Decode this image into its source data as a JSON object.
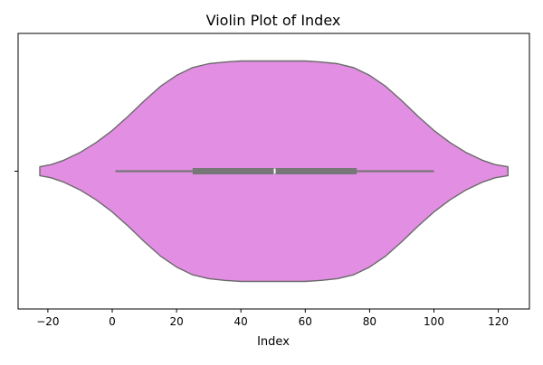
{
  "chart_data": {
    "type": "violin",
    "title": "Violin Plot of Index",
    "xlabel": "Index",
    "ylabel": "",
    "orientation": "horizontal",
    "xlim": [
      -28,
      127
    ],
    "x_ticks": [
      -20,
      0,
      20,
      40,
      60,
      80,
      100,
      120
    ],
    "x_tick_labels": [
      "−20",
      "0",
      "20",
      "40",
      "60",
      "80",
      "100",
      "120"
    ],
    "y_tick_labels": [
      ""
    ],
    "violin": {
      "fill_color": "#e28ee3",
      "edge_color": "#6a6a6a",
      "density_profile": [
        [
          -22.5,
          0.04
        ],
        [
          -19,
          0.06
        ],
        [
          -15,
          0.1
        ],
        [
          -10,
          0.17
        ],
        [
          -5,
          0.26
        ],
        [
          0,
          0.37
        ],
        [
          5,
          0.5
        ],
        [
          10,
          0.64
        ],
        [
          15,
          0.77
        ],
        [
          20,
          0.87
        ],
        [
          25,
          0.94
        ],
        [
          30,
          0.975
        ],
        [
          35,
          0.99
        ],
        [
          40,
          1.0
        ],
        [
          50,
          1.0
        ],
        [
          60,
          1.0
        ],
        [
          65,
          0.99
        ],
        [
          70,
          0.975
        ],
        [
          75,
          0.94
        ],
        [
          80,
          0.87
        ],
        [
          85,
          0.77
        ],
        [
          90,
          0.64
        ],
        [
          95,
          0.5
        ],
        [
          100,
          0.37
        ],
        [
          105,
          0.26
        ],
        [
          110,
          0.17
        ],
        [
          115,
          0.1
        ],
        [
          119,
          0.06
        ],
        [
          123,
          0.04
        ]
      ]
    },
    "box": {
      "whisker_low": 1,
      "q1": 25,
      "median": 50.5,
      "q3": 76,
      "whisker_high": 100,
      "color": "#777777",
      "median_color": "#ffffff"
    },
    "grid": false,
    "legend": "none"
  }
}
